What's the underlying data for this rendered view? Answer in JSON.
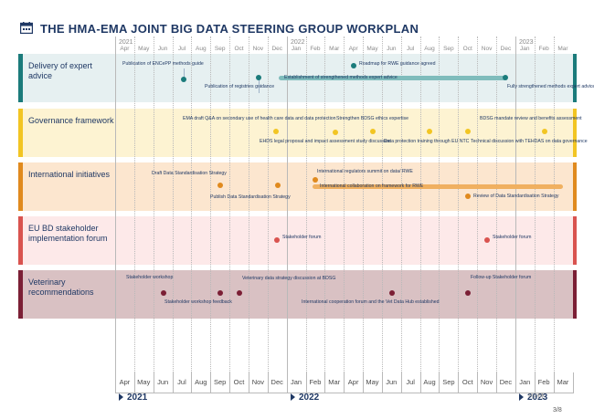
{
  "title": "THE HMA-EMA JOINT BIG DATA STEERING GROUP WORKPLAN",
  "colors": {
    "navy": "#1f3864",
    "delivery": "#1b7b7b",
    "governance": "#f2c523",
    "international": "#e08a1e",
    "eubd": "#d9534f",
    "veterinary": "#7b1f35"
  },
  "timeline_top": {
    "years": [
      "2021",
      "2022",
      "2023"
    ],
    "months": [
      "Apr",
      "May",
      "Jun",
      "Jul",
      "Aug",
      "Sep",
      "Oct",
      "Nov",
      "Dec",
      "Jan",
      "Feb",
      "Mar",
      "Apr",
      "May",
      "Jun",
      "Jul",
      "Aug",
      "Sep",
      "Oct",
      "Nov",
      "Dec",
      "Jan",
      "Feb",
      "Mar"
    ]
  },
  "timeline_bottom": {
    "years": [
      "2021",
      "2022",
      "2023"
    ],
    "months": [
      "Apr",
      "May",
      "Jun",
      "Jul",
      "Aug",
      "Sep",
      "Oct",
      "Nov",
      "Dec",
      "Jan",
      "Feb",
      "Mar",
      "Apr",
      "May",
      "Jun",
      "Jul",
      "Aug",
      "Sep",
      "Oct",
      "Nov",
      "Dec",
      "Jan",
      "Feb",
      "Mar"
    ]
  },
  "rows": [
    {
      "label": "Delivery of expert advice",
      "color": "#1b7b7b"
    },
    {
      "label": "Governance framework",
      "color": "#f2c523"
    },
    {
      "label": "International initiatives",
      "color": "#e08a1e"
    },
    {
      "label": "EU BD stakeholder implementation forum",
      "color": "#d9534f"
    },
    {
      "label": "Veterinary recommendations",
      "color": "#7b1f35"
    }
  ],
  "events": {
    "encepp": "Publication of ENCePP methods guide",
    "registries": "Publication of registries guidance",
    "roadmap": "Roadmap for RWE guidance agreed",
    "fully": "Fully strengthened methods expert advice",
    "establishment_bar": "Establishment of strengthened methods expert advice",
    "ema_draft": "EMA draft Q&A on secondary use of health care data and data protection",
    "ehds": "EHDS legal proposal and impact assessment study discussion",
    "bdsg_ethics": "Strengthen BDSG ethics expertise",
    "dp_training": "Data protection training through EU NTC",
    "bdsg_mandate": "BDSG mandate review and benefits assessment",
    "tehdas": "Technical discussion with TEHDAS on data governance",
    "draft_std": "Draft Data Standardisation Strategy",
    "publish_std": "Publish Data Standardisation Strategy",
    "intl_regulators": "International regulators summit on data/ RWE",
    "intl_bar": "International collaboration on framework for RWE",
    "review_std": "Review of Data Standardisation Strategy",
    "forum1": "Stakeholder forum",
    "forum2": "Stakeholder forum",
    "vet_workshop": "Stakeholder workshop",
    "vet_feedback": "Stakeholder workshop feedback",
    "vet_strategy": "Veterinary data strategy discussion at BDSG",
    "vet_coop": "International cooperation forum and the Vet Data Hub established",
    "vet_followup": "Follow-up Stakeholder forum"
  },
  "page_number": "3/8",
  "watermark": "叩林"
}
